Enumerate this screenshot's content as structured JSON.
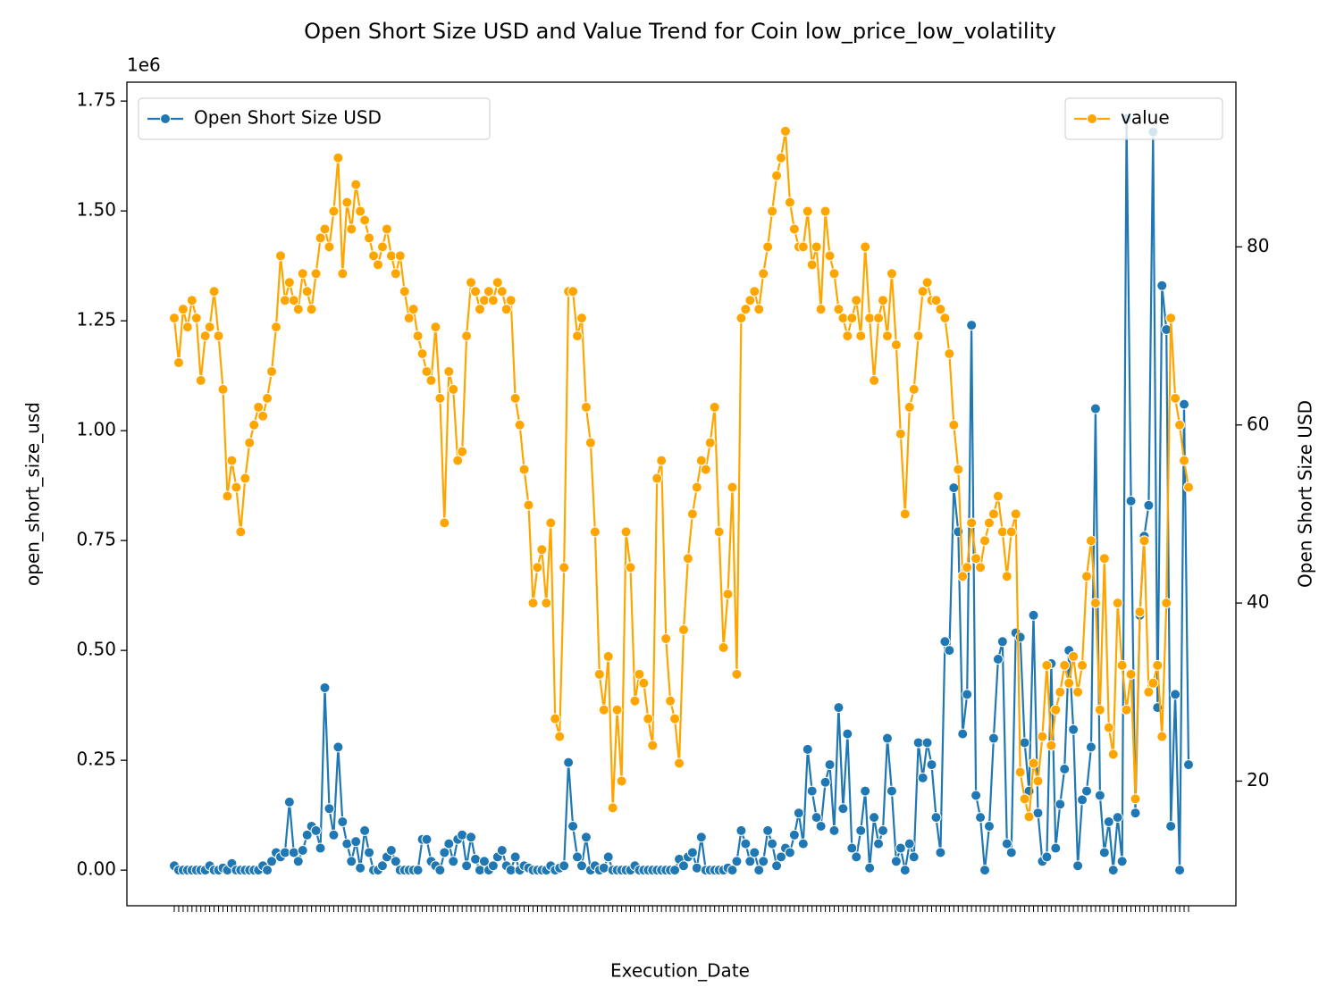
{
  "chart_data": {
    "type": "line",
    "title": "Open Short Size USD and Value Trend for Coin low_price_low_volatility",
    "x_label": "Execution_Date",
    "y_label": "open_short_size_usd",
    "y2_label": "Open Short Size USD",
    "y_offset_label": "1e6",
    "legend": [
      "upper left",
      "upper right"
    ],
    "ylim": [
      -81000,
      1793000
    ],
    "yticks": [
      {
        "value": 0,
        "label": "0.00"
      },
      {
        "value": 250000,
        "label": "0.25"
      },
      {
        "value": 500000,
        "label": "0.50"
      },
      {
        "value": 750000,
        "label": "0.75"
      },
      {
        "value": 1000000,
        "label": "1.00"
      },
      {
        "value": 1250000,
        "label": "1.25"
      },
      {
        "value": 1500000,
        "label": "1.50"
      },
      {
        "value": 1750000,
        "label": "1.75"
      }
    ],
    "y2lim": [
      6,
      98.5
    ],
    "y2ticks": [
      20,
      40,
      60,
      80
    ],
    "categories": [
      null,
      null,
      null,
      null,
      null,
      null,
      null,
      null,
      null,
      null,
      null,
      null,
      null,
      null,
      null,
      null,
      null,
      null,
      null,
      null,
      null,
      null,
      null,
      null,
      null,
      null,
      null,
      null,
      null,
      null,
      null,
      null,
      null,
      null,
      null,
      null,
      null,
      null,
      null,
      null,
      null,
      null,
      null,
      null,
      null,
      null,
      null,
      null,
      null,
      null,
      null,
      null,
      null,
      null,
      null,
      null,
      null,
      null,
      null,
      null,
      null,
      null,
      null,
      null,
      null,
      null,
      null,
      null,
      null,
      null,
      null,
      null,
      null,
      null,
      null,
      null,
      null,
      null,
      null,
      null,
      null,
      null,
      null,
      null,
      null,
      null,
      null,
      null,
      null,
      null,
      null,
      null,
      null,
      null,
      null,
      null,
      null,
      null,
      null,
      null,
      null,
      null,
      null,
      null,
      null,
      null,
      null,
      null,
      null,
      null,
      null,
      null,
      null,
      null,
      null,
      null,
      null,
      null,
      null,
      null,
      null,
      null,
      null,
      null,
      null,
      null,
      null,
      null,
      null,
      null,
      null,
      null,
      null,
      null,
      null,
      null,
      null,
      null,
      null,
      null,
      null,
      null,
      null,
      null,
      null,
      null,
      null,
      null,
      null,
      null,
      null,
      null,
      null,
      null,
      null,
      null,
      null,
      null,
      null,
      null,
      null,
      null,
      null,
      null,
      null,
      null,
      null,
      null,
      null,
      null,
      null,
      null,
      null,
      null,
      null,
      null,
      null,
      null,
      null,
      null,
      null,
      null,
      null,
      null,
      null,
      null,
      null,
      null,
      null,
      null,
      null,
      null,
      null,
      null,
      null,
      null,
      null,
      null,
      null,
      null,
      null,
      null,
      null,
      null,
      null,
      null,
      null,
      null,
      null,
      null,
      null,
      null,
      null,
      null,
      null,
      null,
      null,
      null,
      null,
      null,
      null,
      null,
      null,
      null,
      null,
      null,
      null,
      null,
      null,
      null
    ],
    "series": [
      {
        "name": "Open Short Size USD",
        "color": "#1f77b4",
        "values": [
          10000,
          0,
          0,
          0,
          0,
          0,
          0,
          0,
          10000,
          0,
          0,
          5000,
          0,
          15000,
          0,
          0,
          0,
          0,
          0,
          0,
          10000,
          0,
          20000,
          40000,
          30000,
          40000,
          155000,
          40000,
          20000,
          45000,
          80000,
          100000,
          90000,
          50000,
          415000,
          140000,
          80000,
          280000,
          110000,
          60000,
          20000,
          65000,
          5000,
          90000,
          40000,
          0,
          0,
          10000,
          30000,
          45000,
          20000,
          0,
          0,
          0,
          0,
          0,
          70000,
          70000,
          20000,
          10000,
          0,
          40000,
          60000,
          20000,
          70000,
          80000,
          10000,
          75000,
          25000,
          0,
          20000,
          0,
          10000,
          30000,
          45000,
          10000,
          0,
          30000,
          0,
          10000,
          5000,
          0,
          0,
          0,
          0,
          10000,
          0,
          5000,
          10000,
          245000,
          100000,
          30000,
          10000,
          75000,
          0,
          10000,
          0,
          5000,
          30000,
          0,
          0,
          0,
          0,
          0,
          10000,
          0,
          0,
          0,
          0,
          0,
          0,
          0,
          0,
          0,
          25000,
          10000,
          30000,
          40000,
          5000,
          75000,
          0,
          0,
          0,
          0,
          0,
          5000,
          0,
          20000,
          90000,
          60000,
          20000,
          40000,
          0,
          20000,
          90000,
          60000,
          10000,
          30000,
          50000,
          40000,
          80000,
          130000,
          60000,
          275000,
          180000,
          120000,
          100000,
          200000,
          240000,
          90000,
          370000,
          140000,
          310000,
          50000,
          30000,
          90000,
          180000,
          5000,
          120000,
          60000,
          90000,
          300000,
          180000,
          20000,
          50000,
          0,
          60000,
          30000,
          290000,
          210000,
          290000,
          240000,
          120000,
          40000,
          520000,
          500000,
          870000,
          770000,
          310000,
          400000,
          1240000,
          170000,
          120000,
          0,
          100000,
          300000,
          480000,
          520000,
          60000,
          40000,
          540000,
          530000,
          290000,
          180000,
          580000,
          130000,
          20000,
          30000,
          470000,
          50000,
          150000,
          230000,
          500000,
          320000,
          10000,
          160000,
          180000,
          280000,
          1050000,
          170000,
          40000,
          110000,
          0,
          120000,
          20000,
          1710000,
          840000,
          130000,
          580000,
          760000,
          830000,
          1680000,
          370000,
          1330000,
          1230000,
          100000,
          400000,
          0,
          1060000,
          240000
        ]
      },
      {
        "name": "value",
        "color": "#ffa500",
        "axis": "y2",
        "values": [
          72,
          67,
          73,
          71,
          74,
          72,
          65,
          70,
          71,
          75,
          70,
          64,
          52,
          56,
          53,
          48,
          54,
          58,
          60,
          62,
          61,
          63,
          66,
          71,
          79,
          74,
          76,
          74,
          73,
          77,
          75,
          73,
          77,
          81,
          82,
          80,
          84,
          90,
          77,
          85,
          82,
          87,
          84,
          83,
          81,
          79,
          78,
          80,
          82,
          79,
          77,
          79,
          75,
          72,
          73,
          70,
          68,
          66,
          65,
          71,
          63,
          49,
          66,
          64,
          56,
          57,
          70,
          76,
          75,
          73,
          74,
          75,
          74,
          76,
          75,
          73,
          74,
          63,
          60,
          55,
          51,
          40,
          44,
          46,
          40,
          49,
          27,
          25,
          44,
          75,
          75,
          70,
          72,
          62,
          58,
          48,
          32,
          28,
          34,
          17,
          28,
          20,
          48,
          44,
          29,
          32,
          31,
          27,
          24,
          54,
          56,
          36,
          29,
          27,
          22,
          37,
          45,
          50,
          53,
          56,
          55,
          58,
          62,
          48,
          35,
          41,
          53,
          32,
          72,
          73,
          74,
          75,
          73,
          77,
          80,
          84,
          88,
          90,
          93,
          85,
          82,
          80,
          80,
          84,
          78,
          80,
          73,
          84,
          79,
          77,
          73,
          72,
          70,
          72,
          74,
          70,
          80,
          72,
          65,
          72,
          74,
          70,
          77,
          69,
          59,
          50,
          62,
          64,
          70,
          75,
          76,
          74,
          74,
          73,
          72,
          68,
          60,
          55,
          43,
          44,
          49,
          45,
          44,
          47,
          49,
          50,
          52,
          48,
          43,
          48,
          50,
          21,
          18,
          16,
          22,
          20,
          25,
          33,
          24,
          28,
          30,
          33,
          31,
          34,
          30,
          33,
          43,
          47,
          40,
          28,
          45,
          26,
          23,
          40,
          33,
          28,
          32,
          18,
          39,
          47,
          30,
          31,
          33,
          25,
          40,
          72,
          63,
          60,
          56,
          53
        ]
      }
    ]
  }
}
